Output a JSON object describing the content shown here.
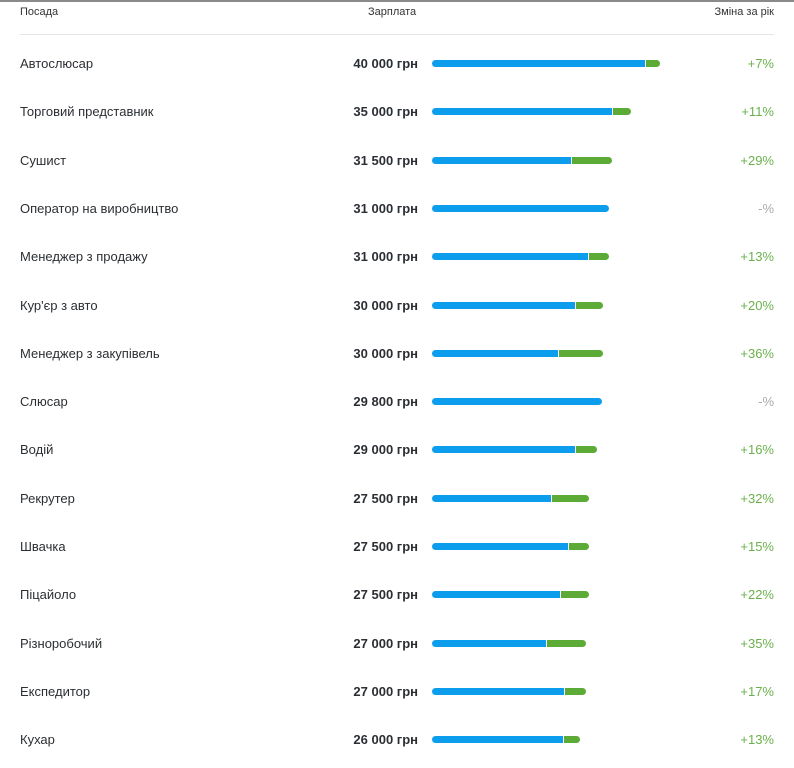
{
  "header": {
    "position": "Посада",
    "salary": "Зарплата",
    "change": "Зміна за рік"
  },
  "colors": {
    "current": "#0c9ded",
    "growth": "#5bab36",
    "positive_text": "#6ab04c",
    "neutral_text": "#aaaaaa"
  },
  "rows": [
    {
      "position": "Автослюсар",
      "salary": "40 000 грн",
      "salary_value": 40000,
      "change": "+7%",
      "change_pct": 7
    },
    {
      "position": "Торговий представник",
      "salary": "35 000 грн",
      "salary_value": 35000,
      "change": "+11%",
      "change_pct": 11
    },
    {
      "position": "Сушист",
      "salary": "31 500 грн",
      "salary_value": 31500,
      "change": "+29%",
      "change_pct": 29
    },
    {
      "position": "Оператор на виробництво",
      "salary": "31 000 грн",
      "salary_value": 31000,
      "change": "-%",
      "change_pct": null
    },
    {
      "position": "Менеджер з продажу",
      "salary": "31 000 грн",
      "salary_value": 31000,
      "change": "+13%",
      "change_pct": 13
    },
    {
      "position": "Кур'єр з авто",
      "salary": "30 000 грн",
      "salary_value": 30000,
      "change": "+20%",
      "change_pct": 20
    },
    {
      "position": "Менеджер з закупівель",
      "salary": "30 000 грн",
      "salary_value": 30000,
      "change": "+36%",
      "change_pct": 36
    },
    {
      "position": "Слюсар",
      "salary": "29 800 грн",
      "salary_value": 29800,
      "change": "-%",
      "change_pct": null
    },
    {
      "position": "Водій",
      "salary": "29 000 грн",
      "salary_value": 29000,
      "change": "+16%",
      "change_pct": 16
    },
    {
      "position": "Рекрутер",
      "salary": "27 500 грн",
      "salary_value": 27500,
      "change": "+32%",
      "change_pct": 32
    },
    {
      "position": "Швачка",
      "salary": "27 500 грн",
      "salary_value": 27500,
      "change": "+15%",
      "change_pct": 15
    },
    {
      "position": "Піцайоло",
      "salary": "27 500 грн",
      "salary_value": 27500,
      "change": "+22%",
      "change_pct": 22
    },
    {
      "position": "Різноробочий",
      "salary": "27 000 грн",
      "salary_value": 27000,
      "change": "+35%",
      "change_pct": 35
    },
    {
      "position": "Експедитор",
      "salary": "27 000 грн",
      "salary_value": 27000,
      "change": "+17%",
      "change_pct": 17
    },
    {
      "position": "Кухар",
      "salary": "26 000 грн",
      "salary_value": 26000,
      "change": "+13%",
      "change_pct": 13
    }
  ]
}
